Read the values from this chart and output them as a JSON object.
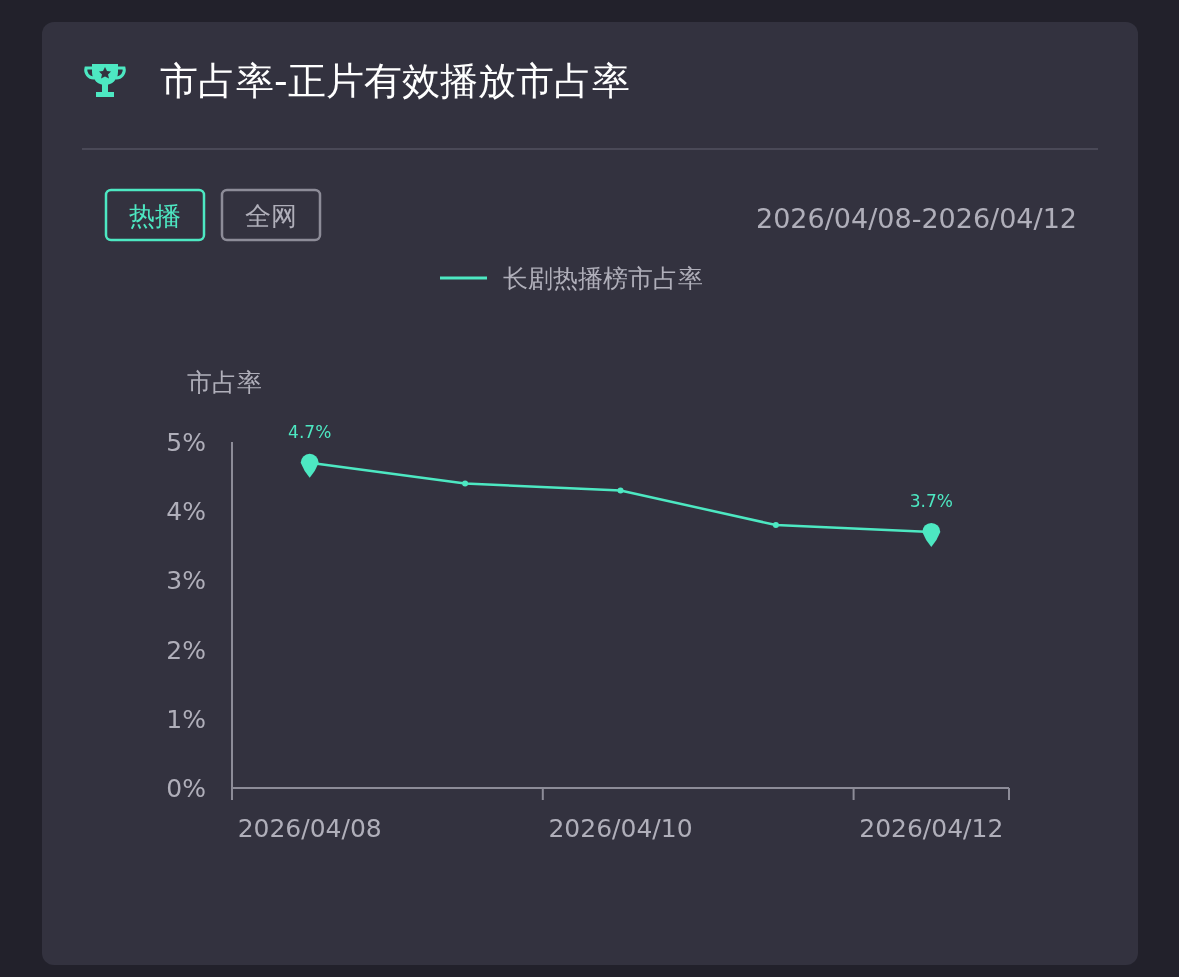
{
  "chart_data": {
    "type": "line",
    "title": "市占率-正片有效播放市占率",
    "subtitle": "2026/04/08-2026/04/12",
    "ylabel": "市占率",
    "annotations": [
      "热播",
      "全网"
    ],
    "categories": [
      "2026/04/08",
      null,
      "2026/04/10",
      null,
      "2026/04/12"
    ],
    "series": [
      {
        "name": "长剧热播榜市占率",
        "color": "#4de8c2",
        "values": [
          4.7,
          4.4,
          4.3,
          3.8,
          3.7
        ],
        "value_labels": [
          "4.7%",
          null,
          null,
          null,
          "3.7%"
        ]
      }
    ],
    "ylim": [
      0,
      5
    ],
    "yticks": [
      {
        "value": 0,
        "label": "0%"
      },
      {
        "value": 1,
        "label": "1%"
      },
      {
        "value": 2,
        "label": "2%"
      },
      {
        "value": 3,
        "label": "3%"
      },
      {
        "value": 4,
        "label": "4%"
      },
      {
        "value": 5,
        "label": "5%"
      }
    ],
    "grid": false,
    "legend": "top",
    "marker": "circle",
    "line_style": "solid"
  }
}
